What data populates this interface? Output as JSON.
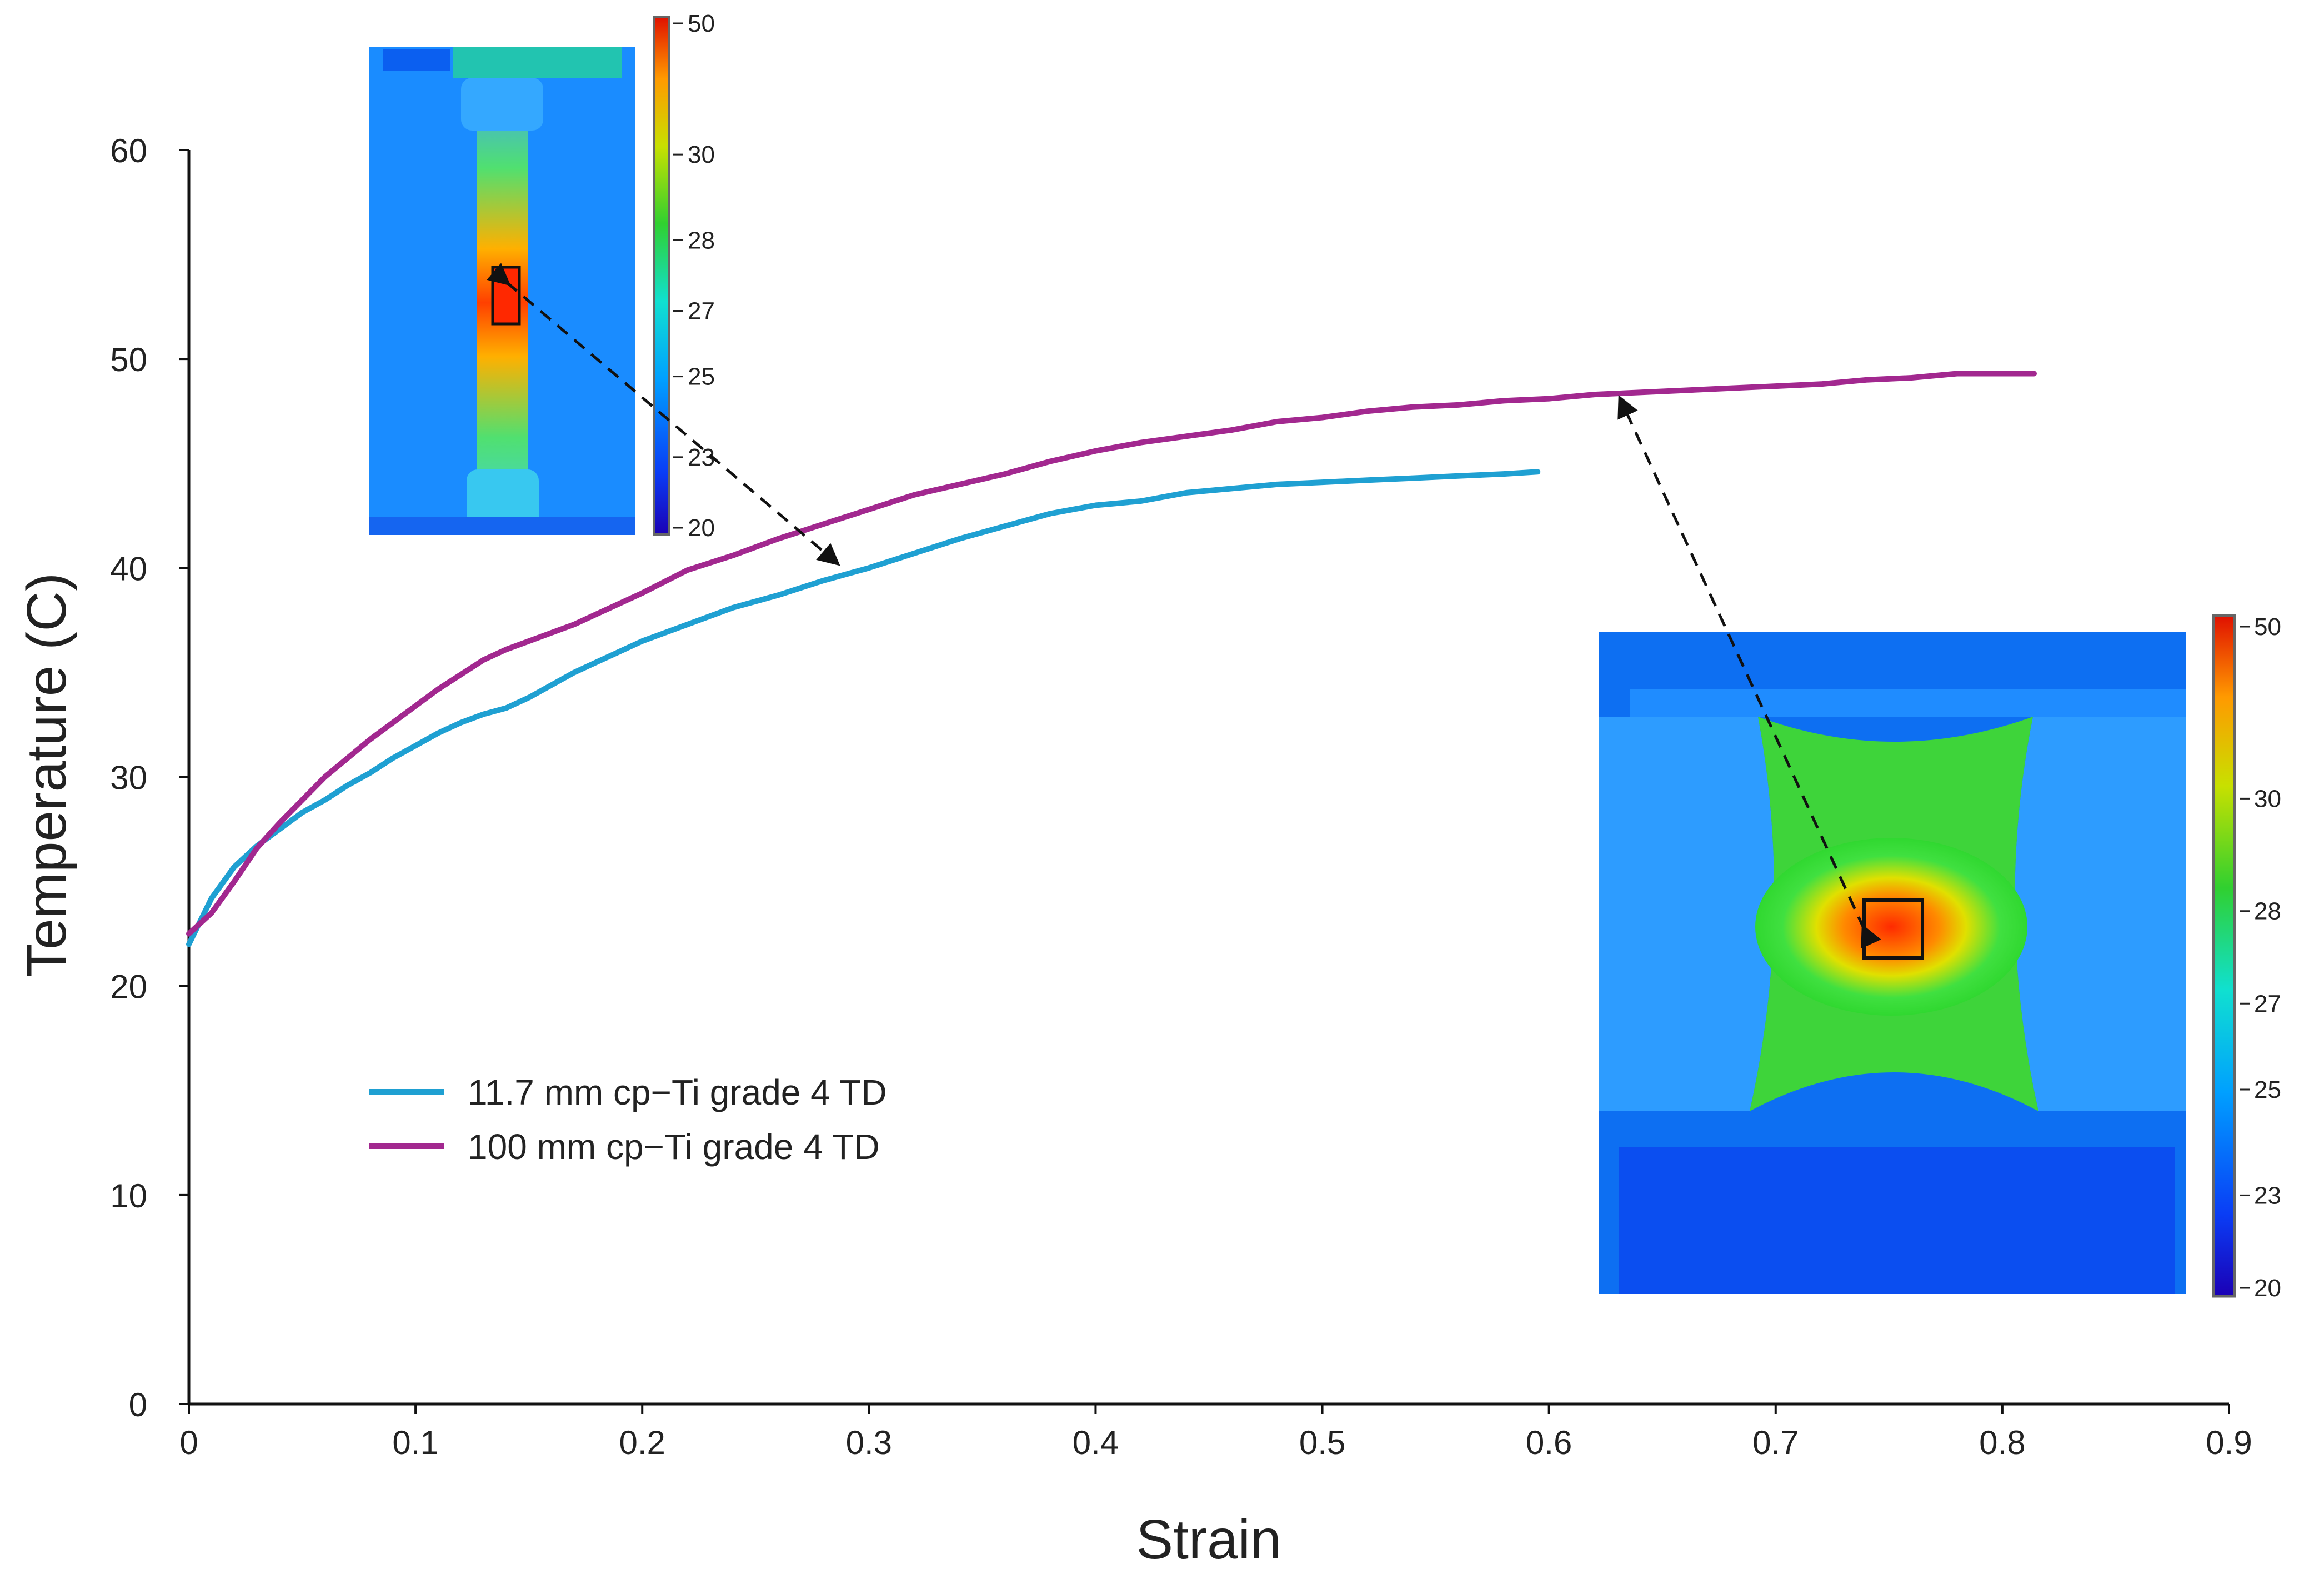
{
  "chart_data": {
    "type": "line",
    "title": "",
    "xlabel": "Strain",
    "ylabel": "Temperature (C)",
    "xlim": [
      0,
      0.9
    ],
    "ylim": [
      0,
      60
    ],
    "grid": false,
    "x_ticks": [
      "0",
      "0.1",
      "0.2",
      "0.3",
      "0.4",
      "0.5",
      "0.6",
      "0.7",
      "0.8",
      "0.9"
    ],
    "y_ticks": [
      "0",
      "10",
      "20",
      "30",
      "40",
      "50",
      "60"
    ],
    "legend_position": "center-left",
    "series": [
      {
        "name": "11.7 mm cp−Ti grade 4 TD",
        "color": "#1fa0d2",
        "points": [
          [
            0,
            22.0
          ],
          [
            0.01,
            24.2
          ],
          [
            0.02,
            25.7
          ],
          [
            0.03,
            26.7
          ],
          [
            0.04,
            27.5
          ],
          [
            0.05,
            28.3
          ],
          [
            0.06,
            28.9
          ],
          [
            0.07,
            29.6
          ],
          [
            0.08,
            30.2
          ],
          [
            0.09,
            30.9
          ],
          [
            0.1,
            31.5
          ],
          [
            0.11,
            32.1
          ],
          [
            0.12,
            32.6
          ],
          [
            0.13,
            33.0
          ],
          [
            0.14,
            33.3
          ],
          [
            0.15,
            33.8
          ],
          [
            0.16,
            34.4
          ],
          [
            0.17,
            35.0
          ],
          [
            0.18,
            35.5
          ],
          [
            0.19,
            36.0
          ],
          [
            0.2,
            36.5
          ],
          [
            0.22,
            37.3
          ],
          [
            0.24,
            38.1
          ],
          [
            0.26,
            38.7
          ],
          [
            0.28,
            39.4
          ],
          [
            0.3,
            40.0
          ],
          [
            0.32,
            40.7
          ],
          [
            0.34,
            41.4
          ],
          [
            0.36,
            42.0
          ],
          [
            0.38,
            42.6
          ],
          [
            0.4,
            43.0
          ],
          [
            0.42,
            43.2
          ],
          [
            0.44,
            43.6
          ],
          [
            0.46,
            43.8
          ],
          [
            0.48,
            44.0
          ],
          [
            0.5,
            44.1
          ],
          [
            0.52,
            44.2
          ],
          [
            0.54,
            44.3
          ],
          [
            0.56,
            44.4
          ],
          [
            0.58,
            44.5
          ],
          [
            0.595,
            44.6
          ]
        ]
      },
      {
        "name": "100 mm cp−Ti grade 4 TD",
        "color": "#a2288f",
        "points": [
          [
            0,
            22.5
          ],
          [
            0.01,
            23.5
          ],
          [
            0.02,
            25.0
          ],
          [
            0.03,
            26.6
          ],
          [
            0.04,
            27.8
          ],
          [
            0.05,
            28.9
          ],
          [
            0.06,
            30.0
          ],
          [
            0.07,
            30.9
          ],
          [
            0.08,
            31.8
          ],
          [
            0.09,
            32.6
          ],
          [
            0.1,
            33.4
          ],
          [
            0.11,
            34.2
          ],
          [
            0.12,
            34.9
          ],
          [
            0.13,
            35.6
          ],
          [
            0.14,
            36.1
          ],
          [
            0.15,
            36.5
          ],
          [
            0.16,
            36.9
          ],
          [
            0.17,
            37.3
          ],
          [
            0.18,
            37.8
          ],
          [
            0.19,
            38.3
          ],
          [
            0.2,
            38.8
          ],
          [
            0.22,
            39.9
          ],
          [
            0.24,
            40.6
          ],
          [
            0.26,
            41.4
          ],
          [
            0.28,
            42.1
          ],
          [
            0.3,
            42.8
          ],
          [
            0.32,
            43.5
          ],
          [
            0.34,
            44.0
          ],
          [
            0.36,
            44.5
          ],
          [
            0.38,
            45.1
          ],
          [
            0.4,
            45.6
          ],
          [
            0.42,
            46.0
          ],
          [
            0.44,
            46.3
          ],
          [
            0.46,
            46.6
          ],
          [
            0.48,
            47.0
          ],
          [
            0.5,
            47.2
          ],
          [
            0.52,
            47.5
          ],
          [
            0.54,
            47.7
          ],
          [
            0.56,
            47.8
          ],
          [
            0.58,
            48.0
          ],
          [
            0.6,
            48.1
          ],
          [
            0.62,
            48.3
          ],
          [
            0.64,
            48.4
          ],
          [
            0.66,
            48.5
          ],
          [
            0.68,
            48.6
          ],
          [
            0.7,
            48.7
          ],
          [
            0.72,
            48.8
          ],
          [
            0.74,
            49.0
          ],
          [
            0.76,
            49.1
          ],
          [
            0.78,
            49.3
          ],
          [
            0.8,
            49.3
          ],
          [
            0.814,
            49.3
          ]
        ]
      }
    ],
    "annotations": [
      {
        "type": "arrow",
        "style": "dashed",
        "description": "from top inset hotspot to 11.7 mm curve",
        "target": [
          0.29,
          40.0
        ]
      },
      {
        "type": "arrow",
        "style": "dashed",
        "description": "from bottom-right inset hotspot to 100 mm curve",
        "target": [
          0.63,
          48.5
        ]
      }
    ],
    "insets": [
      {
        "name": "thermal-image-small-specimen",
        "colorbar_ticks": [
          "50",
          "30",
          "28",
          "27",
          "25",
          "23",
          "20"
        ]
      },
      {
        "name": "thermal-image-large-specimen",
        "colorbar_ticks": [
          "50",
          "30",
          "28",
          "27",
          "25",
          "23",
          "20"
        ]
      }
    ]
  }
}
